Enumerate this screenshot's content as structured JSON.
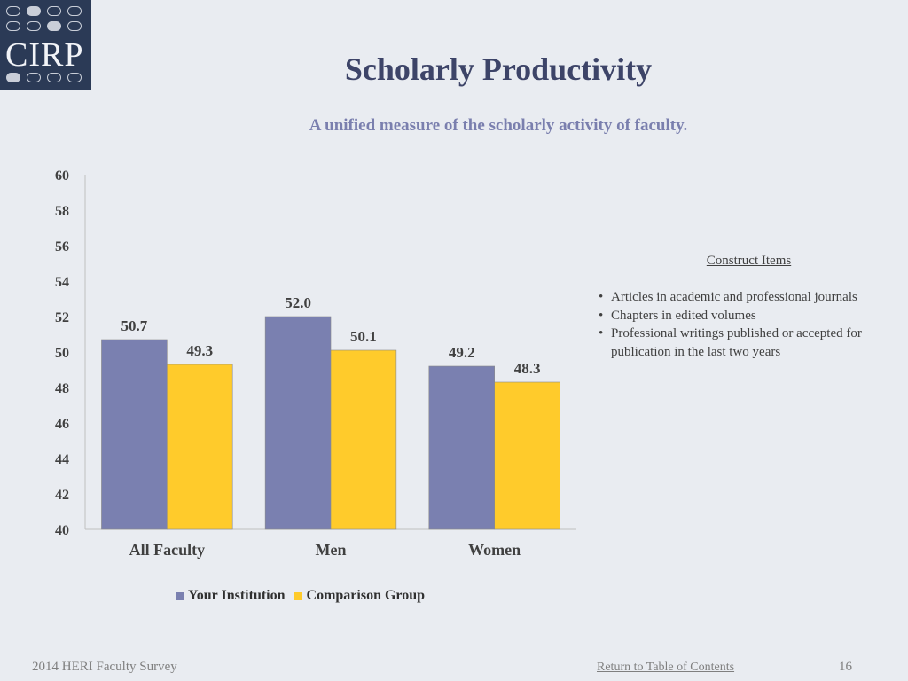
{
  "logo": {
    "text": "CIRP"
  },
  "title": "Scholarly Productivity",
  "subtitle": "A unified measure of the scholarly activity of faculty.",
  "colors": {
    "your_institution": "#7a80b0",
    "comparison_group": "#ffcb2b",
    "title": "#3d4468",
    "subtitle": "#7a7fae"
  },
  "chart_data": {
    "type": "bar",
    "categories": [
      "All Faculty",
      "Men",
      "Women"
    ],
    "series": [
      {
        "name": "Your Institution",
        "values": [
          50.7,
          52.0,
          49.2
        ]
      },
      {
        "name": "Comparison Group",
        "values": [
          49.3,
          50.1,
          48.3
        ]
      }
    ],
    "data_labels": [
      [
        "50.7",
        "52.0",
        "49.2"
      ],
      [
        "49.3",
        "50.1",
        "48.3"
      ]
    ],
    "ylim": [
      40,
      60
    ],
    "yticks": [
      "40",
      "42",
      "44",
      "46",
      "48",
      "50",
      "52",
      "54",
      "56",
      "58",
      "60"
    ],
    "legend_position": "bottom",
    "grid": false
  },
  "construct": {
    "heading": "Construct Items",
    "items": [
      "Articles in academic and professional journals",
      "Chapters in edited volumes",
      "Professional writings published or accepted for publication in the last two years"
    ]
  },
  "footer": {
    "survey": "2014 HERI Faculty Survey",
    "link": "Return to Table of Contents",
    "page": "16"
  }
}
